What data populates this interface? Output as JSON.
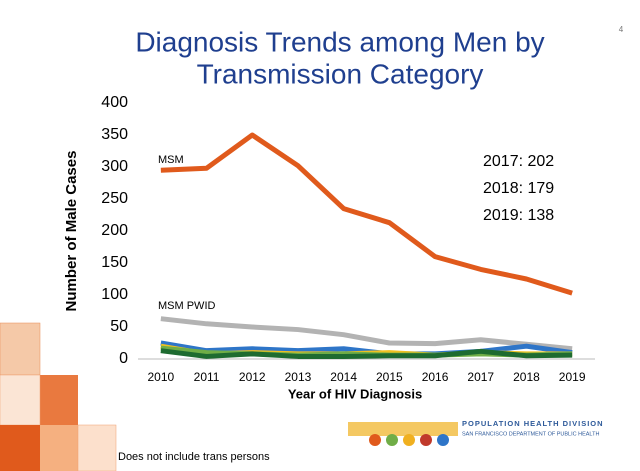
{
  "chart_data": {
    "type": "line",
    "title": [
      "Diagnosis Trends among Men by",
      "Transmission Category"
    ],
    "page_number": "4",
    "xlabel": "Year of HIV Diagnosis",
    "ylabel": "Number of Male Cases",
    "categories": [
      "2010",
      "2011",
      "2012",
      "2013",
      "2014",
      "2015",
      "2016",
      "2017",
      "2018",
      "2019"
    ],
    "series": [
      {
        "name": "MSM PWID",
        "color": "#b3b3b3",
        "values": [
          63,
          55,
          50,
          46,
          38,
          25,
          24,
          30,
          23,
          16
        ]
      },
      {
        "color": "#2e75c8",
        "values": [
          25,
          13,
          16,
          13,
          16,
          8,
          8,
          12,
          20,
          10
        ]
      },
      {
        "color": "#f0c020",
        "values": [
          20,
          8,
          10,
          8,
          8,
          10,
          6,
          10,
          8,
          8
        ]
      },
      {
        "color": "#70ad47",
        "values": [
          17,
          10,
          8,
          6,
          8,
          6,
          6,
          8,
          6,
          8
        ]
      },
      {
        "color": "#1e6b30",
        "values": [
          13,
          4,
          8,
          4,
          4,
          5,
          5,
          12,
          5,
          6
        ]
      },
      {
        "name": "MSM",
        "color": "#e05a1c",
        "values": [
          295,
          298,
          350,
          302,
          235,
          213,
          160,
          140,
          125,
          103
        ]
      }
    ],
    "ylim": [
      0,
      400
    ],
    "yticks": [
      0,
      50,
      100,
      150,
      200,
      250,
      300,
      350,
      400
    ],
    "grid": false,
    "annotations": [
      "2017: 202",
      "2018: 179",
      "2019: 138"
    ],
    "footnote": "Does not include trans persons",
    "logo": [
      "POPULATION HEALTH DIVISION",
      "SAN FRANCISCO DEPARTMENT OF PUBLIC HEALTH"
    ]
  }
}
